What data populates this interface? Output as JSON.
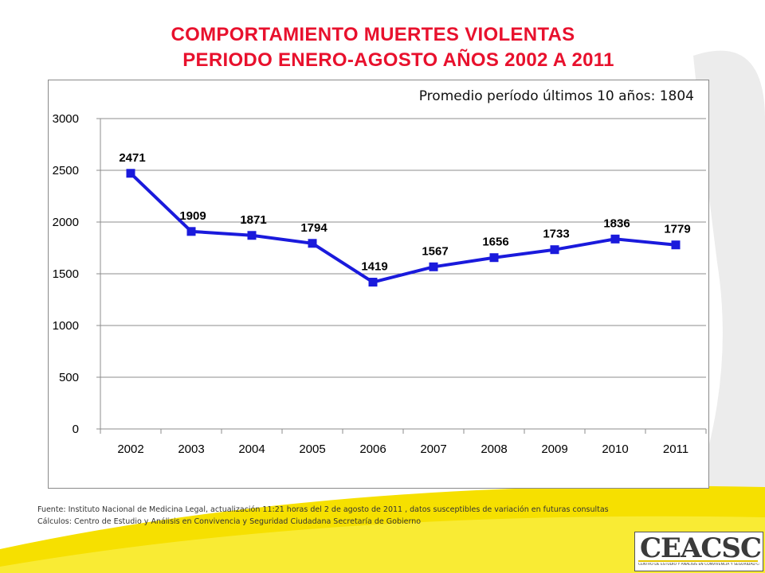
{
  "title_line1": "COMPORTAMIENTO MUERTES VIOLENTAS",
  "title_line2": "PERIODO ENERO-AGOSTO AÑOS 2002 A 2011",
  "chart_data": {
    "type": "line",
    "categories": [
      "2002",
      "2003",
      "2004",
      "2005",
      "2006",
      "2007",
      "2008",
      "2009",
      "2010",
      "2011"
    ],
    "series": [
      {
        "values": [
          2471,
          1909,
          1871,
          1794,
          1419,
          1567,
          1656,
          1733,
          1836,
          1779
        ]
      }
    ],
    "data_labels": [
      "2471",
      "1909",
      "1871",
      "1794",
      "1419",
      "1567",
      "1656",
      "1733",
      "1836",
      "1779"
    ],
    "ylim": [
      0,
      3000
    ],
    "yticks": [
      0,
      500,
      1000,
      1500,
      2000,
      2500,
      3000
    ],
    "grid": true,
    "line_color": "#1a1adc",
    "annotation": "Promedio  período últimos 10 años: 1804"
  },
  "footer": {
    "source": "Fuente: Instituto  Nacional de Medicina Legal, actualización   11:21  horas del  2 de  agosto de 2011 , datos susceptibles de variación en futuras consultas",
    "calc": "Cálculos:  Centro de Estudio  y Análisis en Convivencia y Seguridad Ciudadana Secretaría de Gobierno"
  },
  "logo": {
    "text": "CEACSC",
    "subtitle": "CENTRO DE ESTUDIO Y ANÁLISIS EN CONVIVENCIA Y SEGURIDAD CIUDADANA"
  },
  "colors": {
    "title": "#e8112d",
    "accent_yellow": "#f6e000",
    "series": "#1a1adc"
  }
}
